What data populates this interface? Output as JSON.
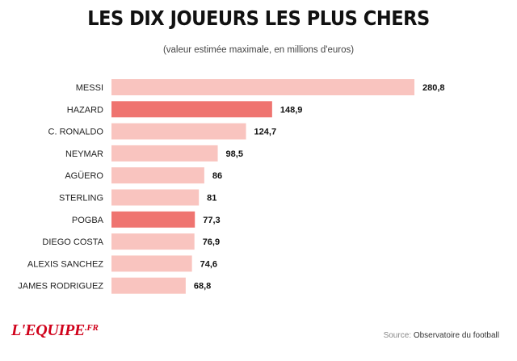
{
  "header": {
    "title": "LES DIX JOUEURS LES PLUS CHERS",
    "subtitle": "(valeur estimée maximale, en millions d'euros)"
  },
  "footer": {
    "logo_main": "L'EQUIPE",
    "logo_suffix": ".FR",
    "source_prefix": "Source:",
    "source_text": "Observatoire du football"
  },
  "colors": {
    "bar_default": "#f9c4bf",
    "bar_highlight": "#ef7470"
  },
  "chart_data": {
    "type": "bar",
    "orientation": "horizontal",
    "title": "LES DIX JOUEURS LES PLUS CHERS",
    "subtitle": "(valeur estimée maximale, en millions d'euros)",
    "categories": [
      "MESSI",
      "HAZARD",
      "C. RONALDO",
      "NEYMAR",
      "AGÜERO",
      "STERLING",
      "POGBA",
      "DIEGO COSTA",
      "ALEXIS SANCHEZ",
      "JAMES RODRIGUEZ"
    ],
    "values": [
      280.8,
      148.9,
      124.7,
      98.5,
      86,
      81,
      77.3,
      76.9,
      74.6,
      68.8
    ],
    "value_labels": [
      "280,8",
      "148,9",
      "124,7",
      "98,5",
      "86",
      "81",
      "77,3",
      "76,9",
      "74,6",
      "68,8"
    ],
    "highlighted": [
      "HAZARD",
      "POGBA"
    ],
    "xlim": [
      0,
      280.8
    ],
    "grid": false,
    "legend": "none"
  }
}
